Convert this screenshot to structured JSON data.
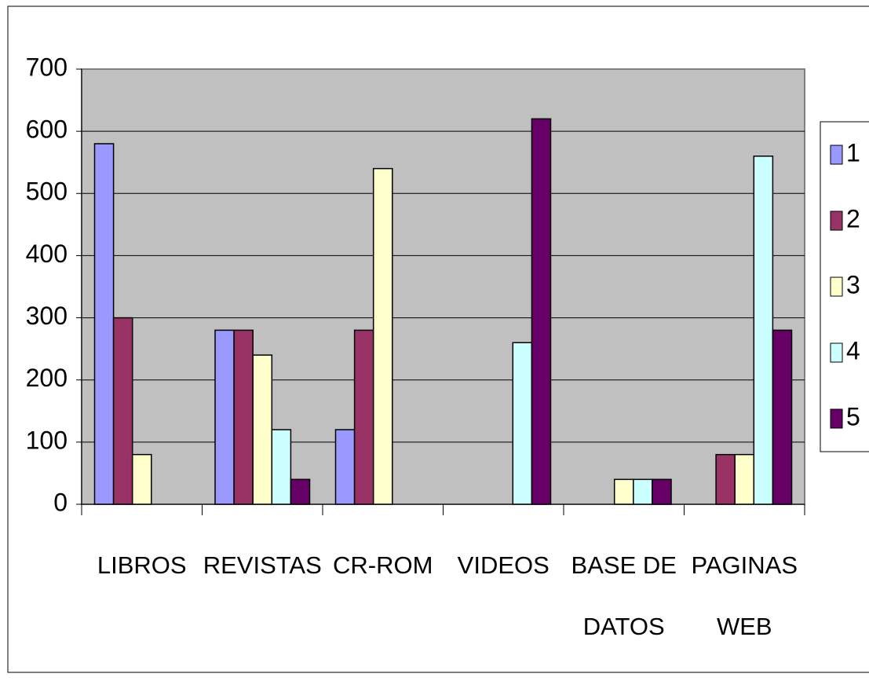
{
  "chart_data": {
    "type": "bar",
    "categories": [
      "LIBROS",
      "REVISTAS",
      "CR-ROM",
      "VIDEOS",
      "BASE DE\nDATOS",
      "PAGINAS\nWEB"
    ],
    "series": [
      {
        "name": "1",
        "color": "#9999ff",
        "values": [
          580,
          280,
          120,
          null,
          null,
          null
        ]
      },
      {
        "name": "2",
        "color": "#993366",
        "values": [
          300,
          280,
          280,
          null,
          null,
          80
        ]
      },
      {
        "name": "3",
        "color": "#ffffcc",
        "values": [
          80,
          240,
          540,
          null,
          40,
          80
        ]
      },
      {
        "name": "4",
        "color": "#ccffff",
        "values": [
          null,
          120,
          null,
          260,
          40,
          560
        ]
      },
      {
        "name": "5",
        "color": "#660066",
        "values": [
          null,
          40,
          null,
          620,
          40,
          280
        ]
      }
    ],
    "ylim": [
      0,
      700
    ],
    "yticks": [
      0,
      100,
      200,
      300,
      400,
      500,
      600,
      700
    ],
    "grid": true,
    "legend": "right",
    "plot_background": "#c0c0c0"
  }
}
